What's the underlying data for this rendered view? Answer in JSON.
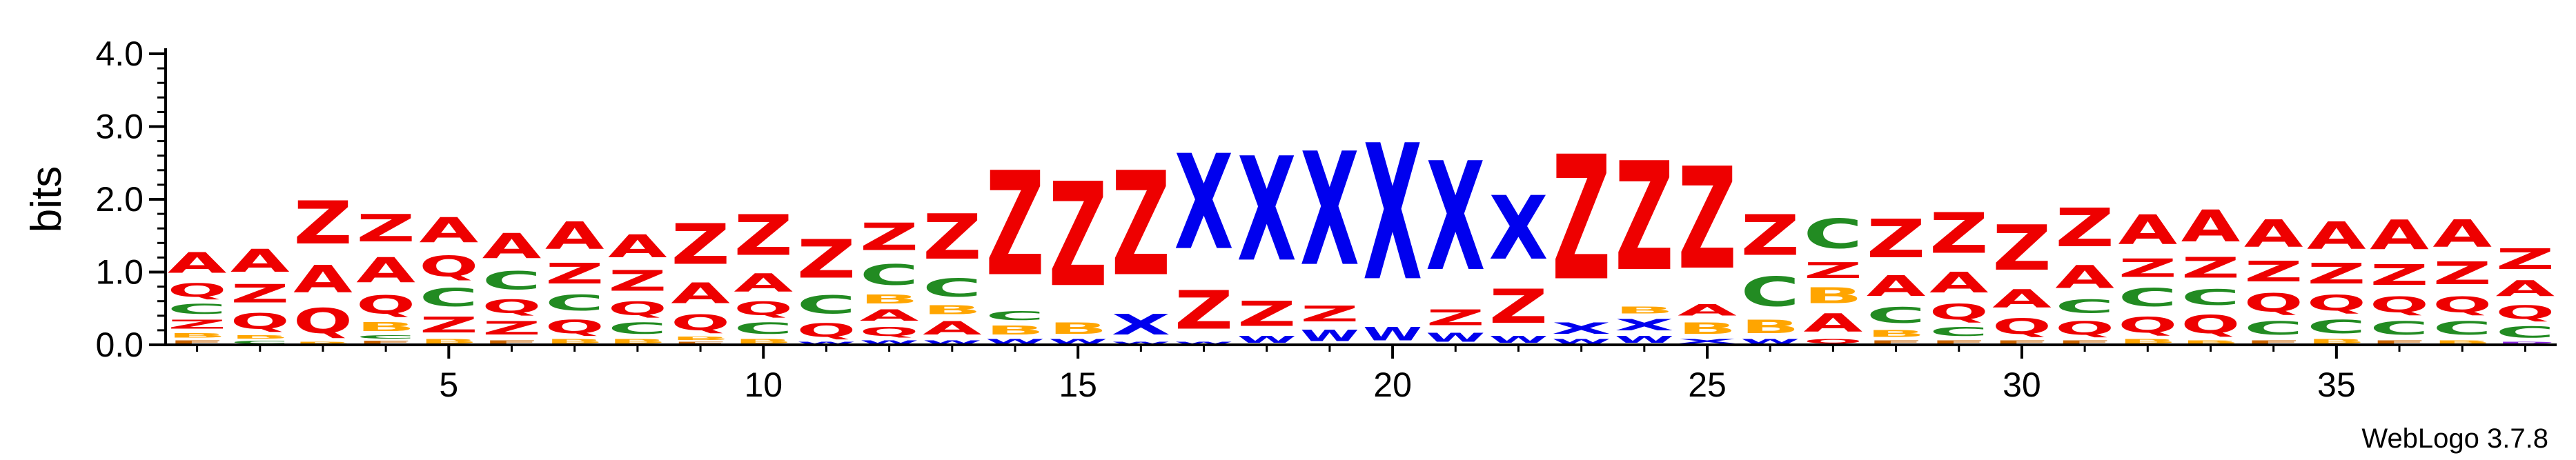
{
  "colors": {
    "A": "#ee0000",
    "Z": "#ee0000",
    "Q": "#ee0000",
    "C": "#228b22",
    "X": "#0000ee",
    "W": "#0000ee",
    "B": "#ffa500",
    "F": "#cc6600",
    "P": "#8a2be2"
  },
  "chart_data": {
    "type": "sequence-logo",
    "ylabel": "bits",
    "ylim": [
      0,
      4.0
    ],
    "xlim": [
      0.5,
      38.5
    ],
    "y_ticks": [
      "0.0",
      "1.0",
      "2.0",
      "3.0",
      "4.0"
    ],
    "x_ticks": [
      "5",
      "10",
      "15",
      "20",
      "25",
      "30",
      "35"
    ],
    "positions": [
      {
        "pos": 1,
        "stack": [
          [
            "F",
            0.08
          ],
          [
            "B",
            0.1
          ],
          [
            "Z",
            0.2
          ],
          [
            "C",
            0.22
          ],
          [
            "Q",
            0.3
          ],
          [
            "A",
            0.45
          ]
        ]
      },
      {
        "pos": 2,
        "stack": [
          [
            "C",
            0.07
          ],
          [
            "B",
            0.08
          ],
          [
            "Q",
            0.35
          ],
          [
            "Z",
            0.4
          ],
          [
            "A",
            0.5
          ]
        ]
      },
      {
        "pos": 3,
        "stack": [
          [
            "B",
            0.05
          ],
          [
            "Q",
            0.55
          ],
          [
            "A",
            0.6
          ],
          [
            "Z",
            0.95
          ]
        ]
      },
      {
        "pos": 4,
        "stack": [
          [
            "F",
            0.07
          ],
          [
            "C",
            0.08
          ],
          [
            "B",
            0.2
          ],
          [
            "Q",
            0.4
          ],
          [
            "A",
            0.55
          ],
          [
            "Z",
            0.6
          ]
        ]
      },
      {
        "pos": 5,
        "stack": [
          [
            "B",
            0.1
          ],
          [
            "Z",
            0.35
          ],
          [
            "C",
            0.4
          ],
          [
            "Q",
            0.45
          ],
          [
            "A",
            0.55
          ]
        ]
      },
      {
        "pos": 6,
        "stack": [
          [
            "F",
            0.08
          ],
          [
            "Z",
            0.3
          ],
          [
            "Q",
            0.3
          ],
          [
            "C",
            0.4
          ],
          [
            "A",
            0.55
          ]
        ]
      },
      {
        "pos": 7,
        "stack": [
          [
            "B",
            0.1
          ],
          [
            "Q",
            0.3
          ],
          [
            "C",
            0.35
          ],
          [
            "Z",
            0.45
          ],
          [
            "A",
            0.6
          ]
        ]
      },
      {
        "pos": 8,
        "stack": [
          [
            "B",
            0.1
          ],
          [
            "C",
            0.25
          ],
          [
            "Q",
            0.3
          ],
          [
            "Z",
            0.45
          ],
          [
            "A",
            0.5
          ]
        ]
      },
      {
        "pos": 9,
        "stack": [
          [
            "F",
            0.05
          ],
          [
            "B",
            0.08
          ],
          [
            "Q",
            0.35
          ],
          [
            "A",
            0.45
          ],
          [
            "Z",
            0.9
          ]
        ]
      },
      {
        "pos": 10,
        "stack": [
          [
            "B",
            0.1
          ],
          [
            "C",
            0.25
          ],
          [
            "Q",
            0.3
          ],
          [
            "A",
            0.4
          ],
          [
            "Z",
            0.9
          ]
        ]
      },
      {
        "pos": 11,
        "stack": [
          [
            "W",
            0.05
          ],
          [
            "Q",
            0.3
          ],
          [
            "C",
            0.4
          ],
          [
            "Z",
            0.85
          ]
        ]
      },
      {
        "pos": 12,
        "stack": [
          [
            "W",
            0.08
          ],
          [
            "Q",
            0.2
          ],
          [
            "A",
            0.25
          ],
          [
            "B",
            0.2
          ],
          [
            "C",
            0.45
          ],
          [
            "Z",
            0.6
          ]
        ]
      },
      {
        "pos": 13,
        "stack": [
          [
            "W",
            0.08
          ],
          [
            "A",
            0.3
          ],
          [
            "B",
            0.2
          ],
          [
            "C",
            0.4
          ],
          [
            "Z",
            1.0
          ]
        ]
      },
      {
        "pos": 14,
        "stack": [
          [
            "W",
            0.1
          ],
          [
            "B",
            0.2
          ],
          [
            "C",
            0.2
          ],
          [
            "Z",
            2.3
          ]
        ]
      },
      {
        "pos": 15,
        "stack": [
          [
            "W",
            0.1
          ],
          [
            "B",
            0.25
          ],
          [
            "Z",
            2.3
          ]
        ]
      },
      {
        "pos": 16,
        "stack": [
          [
            "W",
            0.05
          ],
          [
            "X",
            0.45
          ],
          [
            "Z",
            2.3
          ]
        ]
      },
      {
        "pos": 17,
        "stack": [
          [
            "W",
            0.05
          ],
          [
            "Z",
            0.85
          ],
          [
            "X",
            2.1
          ]
        ]
      },
      {
        "pos": 18,
        "stack": [
          [
            "W",
            0.15
          ],
          [
            "Z",
            0.55
          ],
          [
            "X",
            2.3
          ]
        ]
      },
      {
        "pos": 19,
        "stack": [
          [
            "W",
            0.25
          ],
          [
            "Z",
            0.35
          ],
          [
            "X",
            2.5
          ]
        ]
      },
      {
        "pos": 20,
        "stack": [
          [
            "W",
            0.3
          ],
          [
            "X",
            3.0
          ]
        ]
      },
      {
        "pos": 21,
        "stack": [
          [
            "W",
            0.2
          ],
          [
            "Z",
            0.35
          ],
          [
            "X",
            2.4
          ]
        ]
      },
      {
        "pos": 22,
        "stack": [
          [
            "W",
            0.15
          ],
          [
            "Z",
            0.75
          ],
          [
            "X",
            1.4
          ]
        ]
      },
      {
        "pos": 23,
        "stack": [
          [
            "W",
            0.1
          ],
          [
            "X",
            0.25
          ],
          [
            "Z",
            2.75
          ]
        ]
      },
      {
        "pos": 24,
        "stack": [
          [
            "W",
            0.15
          ],
          [
            "X",
            0.25
          ],
          [
            "B",
            0.15
          ],
          [
            "Z",
            2.4
          ]
        ]
      },
      {
        "pos": 25,
        "stack": [
          [
            "X",
            0.1
          ],
          [
            "B",
            0.25
          ],
          [
            "A",
            0.25
          ],
          [
            "Z",
            2.25
          ]
        ]
      },
      {
        "pos": 26,
        "stack": [
          [
            "W",
            0.1
          ],
          [
            "B",
            0.3
          ],
          [
            "C",
            0.65
          ],
          [
            "Z",
            0.9
          ]
        ]
      },
      {
        "pos": 27,
        "stack": [
          [
            "Q",
            0.1
          ],
          [
            "A",
            0.4
          ],
          [
            "B",
            0.35
          ],
          [
            "Z",
            0.35
          ],
          [
            "C",
            0.65
          ]
        ]
      },
      {
        "pos": 28,
        "stack": [
          [
            "F",
            0.08
          ],
          [
            "B",
            0.15
          ],
          [
            "C",
            0.35
          ],
          [
            "A",
            0.45
          ],
          [
            "Z",
            0.85
          ]
        ]
      },
      {
        "pos": 29,
        "stack": [
          [
            "F",
            0.08
          ],
          [
            "C",
            0.2
          ],
          [
            "Q",
            0.35
          ],
          [
            "A",
            0.45
          ],
          [
            "Z",
            0.9
          ]
        ]
      },
      {
        "pos": 30,
        "stack": [
          [
            "F",
            0.08
          ],
          [
            "Q",
            0.35
          ],
          [
            "A",
            0.4
          ],
          [
            "Z",
            1.0
          ]
        ]
      },
      {
        "pos": 31,
        "stack": [
          [
            "F",
            0.08
          ],
          [
            "Q",
            0.3
          ],
          [
            "C",
            0.3
          ],
          [
            "A",
            0.5
          ],
          [
            "Z",
            0.85
          ]
        ]
      },
      {
        "pos": 32,
        "stack": [
          [
            "B",
            0.1
          ],
          [
            "Q",
            0.35
          ],
          [
            "C",
            0.4
          ],
          [
            "Z",
            0.4
          ],
          [
            "A",
            0.65
          ]
        ]
      },
      {
        "pos": 33,
        "stack": [
          [
            "B",
            0.08
          ],
          [
            "Q",
            0.4
          ],
          [
            "C",
            0.35
          ],
          [
            "Z",
            0.45
          ],
          [
            "A",
            0.7
          ]
        ]
      },
      {
        "pos": 34,
        "stack": [
          [
            "F",
            0.08
          ],
          [
            "C",
            0.3
          ],
          [
            "Q",
            0.4
          ],
          [
            "Z",
            0.45
          ],
          [
            "A",
            0.6
          ]
        ]
      },
      {
        "pos": 35,
        "stack": [
          [
            "B",
            0.1
          ],
          [
            "C",
            0.3
          ],
          [
            "Q",
            0.35
          ],
          [
            "Z",
            0.45
          ],
          [
            "A",
            0.6
          ]
        ]
      },
      {
        "pos": 36,
        "stack": [
          [
            "F",
            0.08
          ],
          [
            "C",
            0.3
          ],
          [
            "Q",
            0.35
          ],
          [
            "Z",
            0.45
          ],
          [
            "A",
            0.65
          ]
        ]
      },
      {
        "pos": 37,
        "stack": [
          [
            "B",
            0.08
          ],
          [
            "C",
            0.3
          ],
          [
            "Q",
            0.35
          ],
          [
            "Z",
            0.5
          ],
          [
            "A",
            0.6
          ]
        ]
      },
      {
        "pos": 38,
        "stack": [
          [
            "P",
            0.05
          ],
          [
            "C",
            0.25
          ],
          [
            "Q",
            0.3
          ],
          [
            "A",
            0.35
          ],
          [
            "Z",
            0.45
          ]
        ]
      }
    ]
  },
  "credit": "WebLogo 3.7.8"
}
